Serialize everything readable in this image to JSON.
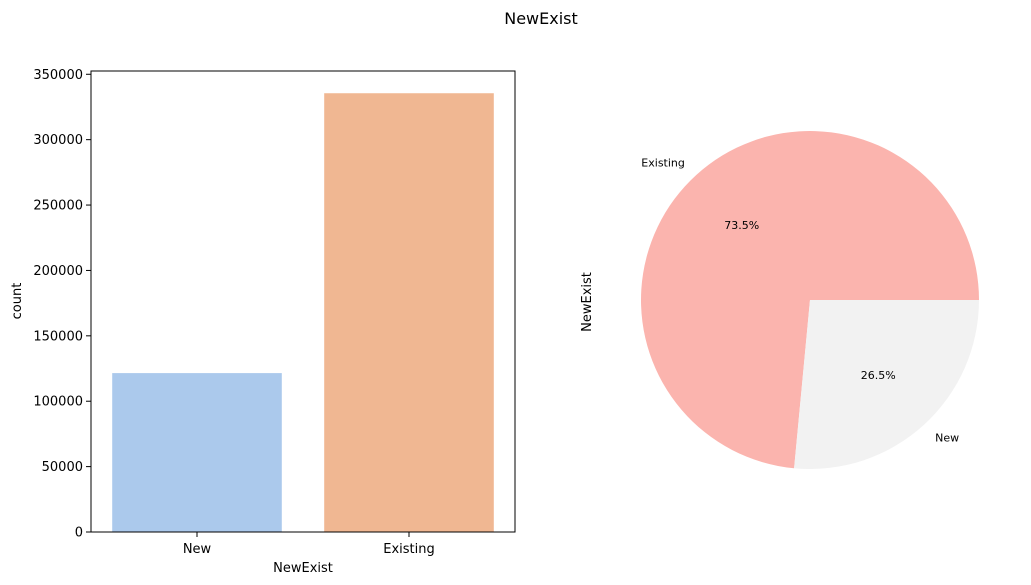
{
  "figure": {
    "suptitle": "NewExist"
  },
  "chart_data": [
    {
      "type": "bar",
      "categories": [
        "New",
        "Existing"
      ],
      "values": [
        121500,
        335500
      ],
      "colors": [
        "#abc9ec",
        "#f0b792"
      ],
      "xlabel": "NewExist",
      "ylabel": "count",
      "ylim": [
        0,
        352500
      ],
      "yticks": [
        0,
        50000,
        100000,
        150000,
        200000,
        250000,
        300000,
        350000
      ],
      "grid": false
    },
    {
      "type": "pie",
      "labels": [
        "Existing",
        "New"
      ],
      "values": [
        73.5,
        26.5
      ],
      "pct_labels": [
        "73.5%",
        "26.5%"
      ],
      "colors": [
        "#fbb4ae",
        "#f2f2f2"
      ],
      "ylabel": "NewExist"
    }
  ]
}
